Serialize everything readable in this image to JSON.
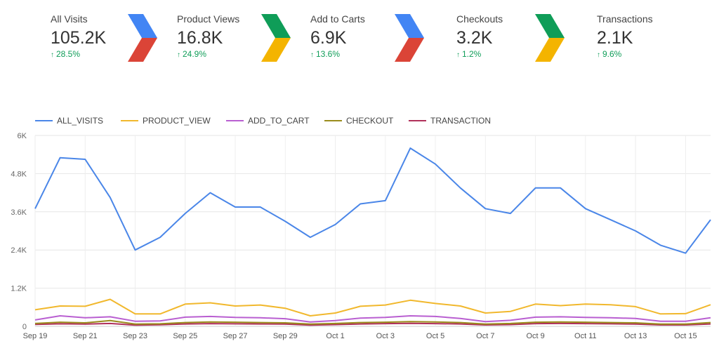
{
  "scorecards": [
    {
      "label": "All Visits",
      "value": "105.2K",
      "delta": "28.5%"
    },
    {
      "label": "Product Views",
      "value": "16.8K",
      "delta": "24.9%"
    },
    {
      "label": "Add to Carts",
      "value": "6.9K",
      "delta": "13.6%"
    },
    {
      "label": "Checkouts",
      "value": "3.2K",
      "delta": "1.2%"
    },
    {
      "label": "Transactions",
      "value": "2.1K",
      "delta": "9.6%"
    }
  ],
  "chevrons": [
    {
      "top_color": "#4285f4",
      "bottom_color": "#db4437"
    },
    {
      "top_color": "#0f9d58",
      "bottom_color": "#f4b400"
    },
    {
      "top_color": "#4285f4",
      "bottom_color": "#db4437"
    },
    {
      "top_color": "#0f9d58",
      "bottom_color": "#f4b400"
    }
  ],
  "chart_data": {
    "type": "line",
    "x": [
      "Sep 19",
      "Sep 20",
      "Sep 21",
      "Sep 22",
      "Sep 23",
      "Sep 24",
      "Sep 25",
      "Sep 26",
      "Sep 27",
      "Sep 28",
      "Sep 29",
      "Sep 30",
      "Oct 1",
      "Oct 2",
      "Oct 3",
      "Oct 4",
      "Oct 5",
      "Oct 6",
      "Oct 7",
      "Oct 8",
      "Oct 9",
      "Oct 10",
      "Oct 11",
      "Oct 12",
      "Oct 13",
      "Oct 14",
      "Oct 15",
      "Oct 16"
    ],
    "x_tick_labels": [
      "Sep 19",
      "Sep 21",
      "Sep 23",
      "Sep 25",
      "Sep 27",
      "Sep 29",
      "Oct 1",
      "Oct 3",
      "Oct 5",
      "Oct 7",
      "Oct 9",
      "Oct 11",
      "Oct 13",
      "Oct 15"
    ],
    "y_tick_labels": [
      "0",
      "1.2K",
      "2.4K",
      "3.6K",
      "4.8K",
      "6K"
    ],
    "ylim": [
      0,
      6000
    ],
    "grid": true,
    "legend_position": "top-left",
    "series": [
      {
        "name": "ALL_VISITS",
        "color": "#4a86e8",
        "values": [
          3700,
          5300,
          5250,
          4050,
          2400,
          2800,
          3550,
          4200,
          3750,
          3750,
          3300,
          2800,
          3200,
          3850,
          3950,
          5600,
          5100,
          4350,
          3700,
          3550,
          4350,
          4350,
          3700,
          3350,
          3000,
          2550,
          2300,
          3350
        ]
      },
      {
        "name": "PRODUCT_VIEW",
        "color": "#f1b82d",
        "values": [
          520,
          640,
          630,
          850,
          390,
          390,
          700,
          740,
          640,
          670,
          570,
          330,
          420,
          630,
          670,
          820,
          720,
          640,
          420,
          470,
          700,
          650,
          700,
          680,
          620,
          390,
          400,
          680
        ]
      },
      {
        "name": "ADD_TO_CART",
        "color": "#b95fd1",
        "values": [
          200,
          330,
          270,
          300,
          160,
          170,
          290,
          310,
          280,
          270,
          240,
          140,
          180,
          260,
          280,
          330,
          310,
          250,
          150,
          190,
          290,
          300,
          280,
          270,
          250,
          160,
          160,
          270
        ]
      },
      {
        "name": "CHECKOUT",
        "color": "#9a8c1c",
        "values": [
          90,
          130,
          110,
          180,
          70,
          80,
          120,
          140,
          130,
          120,
          110,
          70,
          90,
          120,
          130,
          150,
          140,
          120,
          70,
          90,
          130,
          140,
          130,
          120,
          110,
          70,
          70,
          120
        ]
      },
      {
        "name": "TRANSACTION",
        "color": "#b0305a",
        "values": [
          60,
          80,
          70,
          90,
          40,
          50,
          75,
          85,
          80,
          75,
          70,
          40,
          55,
          75,
          85,
          95,
          85,
          75,
          45,
          55,
          85,
          90,
          85,
          80,
          70,
          45,
          45,
          75
        ]
      }
    ]
  }
}
